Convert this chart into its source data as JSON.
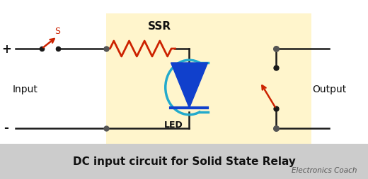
{
  "title": "DC input circuit for Solid State Relay",
  "subtitle": "Electronics Coach",
  "ssr_label": "SSR",
  "led_label": "LED",
  "input_label": "Input",
  "output_label": "Output",
  "plus_label": "+",
  "minus_label": "-",
  "switch_label": "S",
  "bg_color": "#ffffff",
  "ssr_bg_color": "#fff5cc",
  "title_bg_color": "#cccccc",
  "wire_color": "#1a1a1a",
  "resistor_color": "#cc2200",
  "led_body_color": "#1040cc",
  "led_arc_color": "#22aacc",
  "switch_color": "#cc2200",
  "node_color": "#555555",
  "title_fontsize": 11,
  "label_fontsize": 10,
  "small_fontsize": 7.5,
  "ssr_fontsize": 11,
  "switch_fontsize": 9,
  "led_fontsize": 9,
  "plus_minus_fontsize": 12
}
